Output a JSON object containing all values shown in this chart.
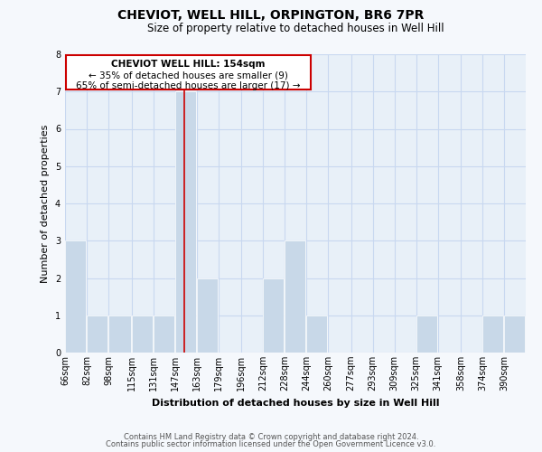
{
  "title": "CHEVIOT, WELL HILL, ORPINGTON, BR6 7PR",
  "subtitle": "Size of property relative to detached houses in Well Hill",
  "xlabel": "Distribution of detached houses by size in Well Hill",
  "ylabel": "Number of detached properties",
  "bin_labels": [
    "66sqm",
    "82sqm",
    "98sqm",
    "115sqm",
    "131sqm",
    "147sqm",
    "163sqm",
    "179sqm",
    "196sqm",
    "212sqm",
    "228sqm",
    "244sqm",
    "260sqm",
    "277sqm",
    "293sqm",
    "309sqm",
    "325sqm",
    "341sqm",
    "358sqm",
    "374sqm",
    "390sqm"
  ],
  "bin_lefts": [
    66,
    82,
    98,
    115,
    131,
    147,
    163,
    179,
    196,
    212,
    228,
    244,
    260,
    277,
    293,
    309,
    325,
    341,
    358,
    374,
    390
  ],
  "bin_widths": [
    16,
    16,
    17,
    16,
    16,
    16,
    16,
    17,
    16,
    16,
    16,
    16,
    17,
    16,
    16,
    16,
    16,
    17,
    16,
    16,
    16
  ],
  "bar_heights": [
    3,
    1,
    1,
    1,
    1,
    7,
    2,
    0,
    0,
    2,
    3,
    1,
    0,
    0,
    0,
    0,
    1,
    0,
    0,
    1,
    1
  ],
  "bar_color": "#c8d8e8",
  "bar_edgecolor": "white",
  "grid_color": "#c8d8f0",
  "bg_color": "#f5f8fc",
  "plot_bg_color": "#e8f0f8",
  "vline_x": 154,
  "vline_color": "#cc0000",
  "ylim": [
    0,
    8
  ],
  "yticks": [
    0,
    1,
    2,
    3,
    4,
    5,
    6,
    7,
    8
  ],
  "xlim_left": 66,
  "xlim_right": 406,
  "annotation_title": "CHEVIOT WELL HILL: 154sqm",
  "annotation_line1": "← 35% of detached houses are smaller (9)",
  "annotation_line2": "65% of semi-detached houses are larger (17) →",
  "footer1": "Contains HM Land Registry data © Crown copyright and database right 2024.",
  "footer2": "Contains public sector information licensed under the Open Government Licence v3.0.",
  "title_fontsize": 10,
  "subtitle_fontsize": 8.5,
  "ylabel_fontsize": 8,
  "xlabel_fontsize": 8,
  "tick_fontsize": 7,
  "annot_fontsize": 7.5,
  "footer_fontsize": 6
}
